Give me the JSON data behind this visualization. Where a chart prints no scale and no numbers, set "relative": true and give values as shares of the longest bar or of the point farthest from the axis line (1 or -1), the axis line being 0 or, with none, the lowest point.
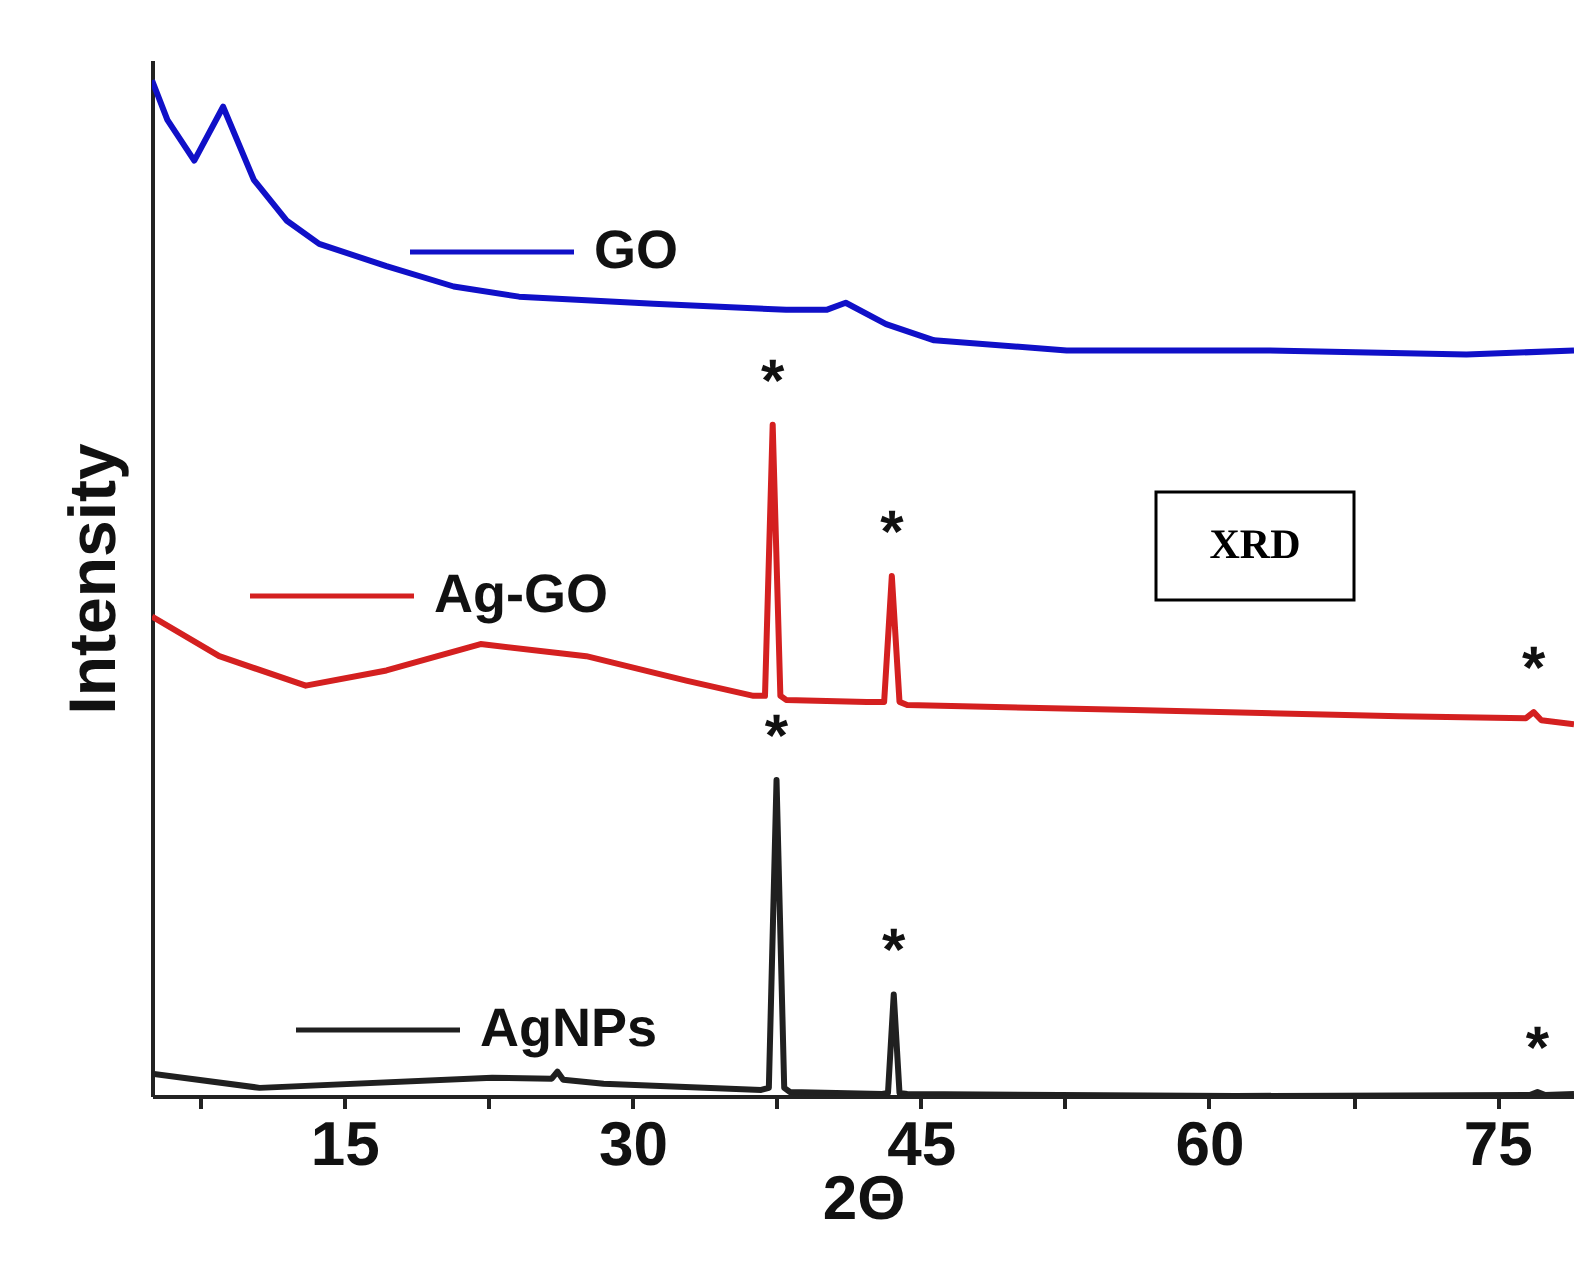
{
  "chart_data": {
    "type": "line",
    "relative": true,
    "xlabel": "2Θ",
    "ylabel": "Intensity",
    "xlim": [
      5,
      79
    ],
    "xticks": [
      {
        "value": 7.5,
        "label": null
      },
      15,
      {
        "value": 22.5,
        "label": null
      },
      30,
      {
        "value": 37.5,
        "label": null
      },
      45,
      {
        "value": 52.5,
        "label": null
      },
      60,
      {
        "value": 67.5,
        "label": null
      },
      75
    ],
    "grid": false,
    "legend": "left",
    "marker": "none",
    "line_style": "solid",
    "series": [
      {
        "name": "GO",
        "color": "#1010c8",
        "x": [
          5,
          5.8,
          7.2,
          8.7,
          10.3,
          12,
          13.7,
          17.2,
          20.7,
          24.1,
          31.1,
          38,
          40.1,
          41.1,
          43.2,
          45.7,
          52.6,
          63,
          73.4,
          79
        ],
        "values": [
          1,
          0.961,
          0.921,
          0.974,
          0.902,
          0.862,
          0.839,
          0.817,
          0.797,
          0.787,
          0.78,
          0.774,
          0.774,
          0.781,
          0.76,
          0.744,
          0.734,
          0.734,
          0.73,
          0.734
        ]
      },
      {
        "name": "Ag-GO",
        "color": "#d42020",
        "x": [
          5,
          8.5,
          13,
          17.2,
          22.1,
          27.6,
          32.8,
          36.3,
          36.9,
          37.3,
          37.7,
          38,
          42.2,
          43.1,
          43.5,
          43.9,
          44.3,
          56.1,
          69.9,
          76.5,
          76.9,
          77.3,
          79
        ],
        "values": [
          0.472,
          0.433,
          0.404,
          0.419,
          0.445,
          0.433,
          0.409,
          0.394,
          0.394,
          0.661,
          0.394,
          0.39,
          0.388,
          0.388,
          0.512,
          0.388,
          0.385,
          0.38,
          0.374,
          0.372,
          0.378,
          0.37,
          0.366
        ]
      },
      {
        "name": "AgNPs",
        "color": "#202020",
        "x": [
          5,
          10.6,
          22.7,
          25.8,
          26.1,
          26.4,
          28.5,
          36.7,
          37.1,
          37.5,
          37.9,
          38.2,
          43,
          43.3,
          43.6,
          43.9,
          44.3,
          61.4,
          76.7,
          77.1,
          77.5,
          79
        ],
        "values": [
          0.022,
          0.008,
          0.018,
          0.017,
          0.024,
          0.016,
          0.012,
          0.006,
          0.008,
          0.311,
          0.008,
          0.004,
          0.002,
          0.003,
          0.1,
          0.003,
          0.002,
          0,
          0.001,
          0.004,
          0.001,
          0.002
        ]
      }
    ],
    "annotations": [
      {
        "text": "*",
        "x": 37.3,
        "y": 0.661
      },
      {
        "text": "*",
        "x": 43.5,
        "y": 0.512
      },
      {
        "text": "*",
        "x": 76.9,
        "y": 0.378
      },
      {
        "text": "*",
        "x": 37.5,
        "y": 0.311
      },
      {
        "text": "*",
        "x": 43.6,
        "y": 0.1
      },
      {
        "text": "*",
        "x": 77.1,
        "y": 0.004
      },
      "XRD"
    ]
  }
}
